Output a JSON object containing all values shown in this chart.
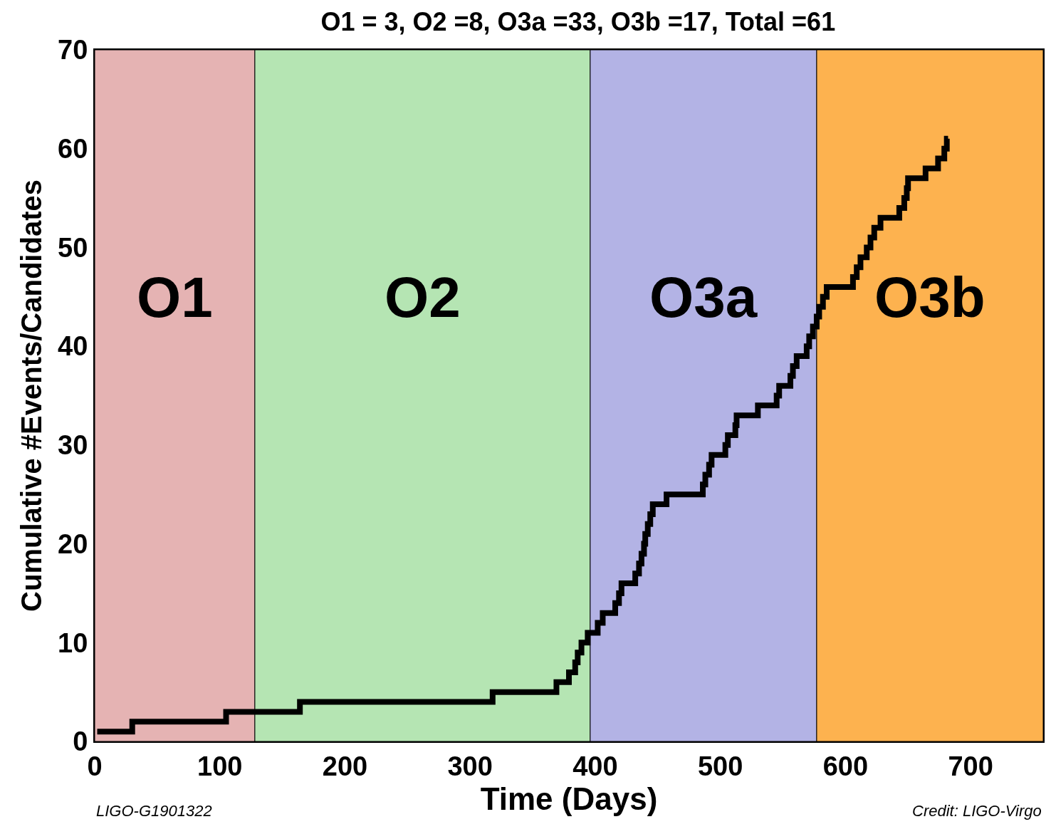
{
  "chart_data": {
    "type": "step",
    "title": "O1 = 3, O2 =8, O3a =33, O3b =17, Total =61",
    "xlabel": "Time (Days)",
    "ylabel": "Cumulative #Events/Candidates",
    "x": [
      2,
      30,
      105,
      164,
      318,
      369,
      379,
      384,
      386,
      389,
      394,
      402,
      406,
      416,
      419,
      421,
      432,
      435,
      437,
      439,
      440,
      442,
      444,
      446,
      457,
      486,
      488,
      491,
      493,
      504,
      506,
      512,
      513,
      530,
      545,
      547,
      556,
      558,
      561,
      569,
      571,
      574,
      577,
      579,
      582,
      585,
      606,
      609,
      612,
      617,
      620,
      623,
      628,
      643,
      647,
      649,
      650,
      664,
      674,
      679,
      681,
      682
    ],
    "series": [
      {
        "color": "#000000",
        "values": [
          1,
          2,
          3,
          4,
          5,
          6,
          7,
          8,
          9,
          10,
          11,
          12,
          13,
          14,
          15,
          16,
          17,
          18,
          19,
          20,
          21,
          22,
          23,
          24,
          25,
          26,
          27,
          28,
          29,
          30,
          31,
          32,
          33,
          34,
          35,
          36,
          37,
          38,
          39,
          40,
          41,
          42,
          43,
          44,
          45,
          46,
          47,
          48,
          49,
          50,
          51,
          52,
          53,
          54,
          55,
          56,
          57,
          58,
          59,
          60,
          61,
          61
        ]
      }
    ],
    "xlim": [
      0,
      758
    ],
    "ylim": [
      0,
      70
    ],
    "xticks": [
      0,
      100,
      200,
      300,
      400,
      500,
      600,
      700
    ],
    "yticks": [
      0,
      10,
      20,
      30,
      40,
      50,
      60,
      70
    ],
    "grid": false,
    "marker": "none",
    "line_style": "solid",
    "bands": [
      {
        "axis": "x",
        "from": 0,
        "to": 128,
        "label": "O1",
        "color": "#e5b3b3"
      },
      {
        "axis": "x",
        "from": 128,
        "to": 396,
        "label": "O2",
        "color": "#b5e5b3"
      },
      {
        "axis": "x",
        "from": 396,
        "to": 577,
        "label": "O3a",
        "color": "#b3b3e5"
      },
      {
        "axis": "x",
        "from": 577,
        "to": 758,
        "label": "O3b",
        "color": "#fdb24f"
      }
    ],
    "annotations": [
      "LIGO-G1901322",
      "Credit: LIGO-Virgo"
    ]
  }
}
